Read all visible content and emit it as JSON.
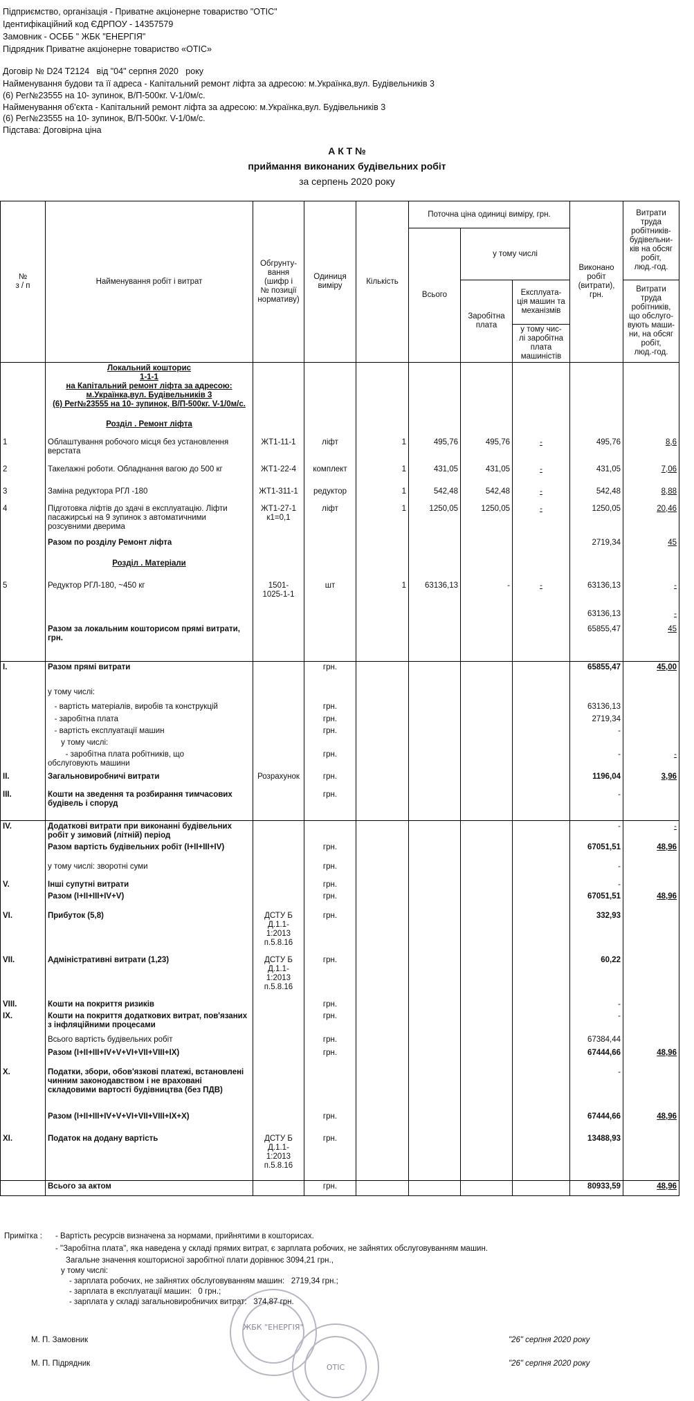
{
  "header": {
    "lines": [
      "Підприємство, організація - Приватне акціонерне товариство \"ОТІС\"",
      "Ідентифікаційний код ЄДРПОУ - 14357579",
      "Замовник - ОСББ \" ЖБК \"ЕНЕРГІЯ\"",
      "Підрядник Приватне акціонерне товариство «ОТІС»",
      "Договір № D24 T2124   від \"04\" серпня 2020   року",
      "Найменування будови та її адреса - Капітальний ремонт ліфта за адресою: м.Українка,вул. Будівельників 3",
      "(6) Рег№23555 на 10- зупинок, В/П-500кг. V-1/0м/с.",
      "Найменування об'єкта - Капітальний ремонт ліфта за адресою: м.Українка,вул. Будівельників 3",
      "(6) Рег№23555 на 10- зупинок, В/П-500кг. V-1/0м/с.",
      "Підстава: Договірна ціна"
    ]
  },
  "title": {
    "line1": "А К Т №",
    "line2": "приймання виконаних будівельних робіт",
    "line3": "за серпень 2020 року"
  },
  "table": {
    "head": {
      "no": "№\nз / п",
      "name": "Найменування робіт і витрат",
      "code": "Обгрунту-\nвання\n(шифр і\n№ позиції\nнормативу)",
      "unit": "Одиниця\nвиміру",
      "qty": "Кількість",
      "price": "Поточна ціна одиниці виміру, грн.",
      "total": "Всього",
      "incl": "у тому числі",
      "wage": "Заробітна\nплата",
      "mach": "Експлуата-\nція машин та\nмеханізмів",
      "mach_wage": "у тому чис-\nлі заробітна\nплата\nмашиністів",
      "done": "Виконано\nробіт\n(витрати),\nгрн.",
      "labor1": "Витрати\nтруда\nробітників-\nбудівельни-\nків на обсяг\nробіт,\nлюд.-год.",
      "labor2": "Витрати\nтруда\nробітників,\nщо обслуго-\nвують маши-\nни, на обсяг\nробіт,\nлюд.-год."
    },
    "rows": [
      {
        "name": "Локальний кошторис\n1-1-1\nна Капітальний ремонт ліфта за адресою:\nм.Українка,вул. Будівельників 3\n(6) Рег№23555 на 10- зупинок, В/П-500кг. V-1/0м/с."
      },
      {
        "name": "Розділ . Ремонт ліфта"
      },
      {
        "no": "1",
        "name": "Облаштування робочого місця без установлення верстата",
        "code": "ЖТ1-11-1",
        "unit": "ліфт",
        "qty": "1",
        "total": "495,76",
        "wage": "495,76",
        "mach": "-",
        "done": "495,76",
        "labor": "8,6"
      },
      {
        "no": "2",
        "name": "Такелажні роботи. Обладнання вагою до 500 кг",
        "code": "ЖТ1-22-4",
        "unit": "комплект",
        "qty": "1",
        "total": "431,05",
        "wage": "431,05",
        "mach": "-",
        "done": "431,05",
        "labor": "7,06"
      },
      {
        "no": "3",
        "name": "Заміна редуктора РГЛ -180",
        "code": "ЖТ1-311-1",
        "unit": "редуктор",
        "qty": "1",
        "total": "542,48",
        "wage": "542,48",
        "mach": "-",
        "done": "542,48",
        "labor": "8,88"
      },
      {
        "no": "4",
        "name": "Підготовка ліфтів до здачі в експлуатацію. Ліфти пасажирські на 9 зупинок з автоматичними розсувними дверима",
        "code": "ЖТ1-27-1\nк1=0,1",
        "unit": "ліфт",
        "qty": "1",
        "total": "1250,05",
        "wage": "1250,05",
        "mach": "-",
        "done": "1250,05",
        "labor": "20,46"
      },
      {
        "name": "Разом по розділу Ремонт ліфта",
        "done": "2719,34",
        "labor": "45"
      },
      {
        "name": "Розділ . Матеріали"
      },
      {
        "no": "5",
        "name": "Редуктор РГЛ-180, ~450 кг",
        "code": "1501-\n1025-1-1",
        "unit": "шт",
        "qty": "1",
        "total": "63136,13",
        "wage": "-",
        "mach": "-",
        "done": "63136,13",
        "labor": "-"
      },
      {
        "done": "63136,13",
        "labor": "-"
      },
      {
        "name": "Разом за локальним кошторисом прямі витрати,  грн.",
        "done": "65855,47",
        "labor": "45"
      },
      {
        "no": "I.",
        "name": "Разом прямі витрати",
        "unit": "грн.",
        "done": "65855,47",
        "labor": "45,00"
      },
      {
        "name": "у тому числі:"
      },
      {
        "name": "   - вартість матеріалів, виробів та конструкцій",
        "unit": "грн.",
        "done": "63136,13"
      },
      {
        "name": "   - заробітна плата",
        "unit": "грн.",
        "done": "2719,34"
      },
      {
        "name": "   - вартість експлуатації машин",
        "unit": "грн.",
        "done": "-"
      },
      {
        "name": "      у тому числі:"
      },
      {
        "name": "        - заробітна плата робітників, що\nобслуговують машини",
        "unit": "грн.",
        "done": "-",
        "labor": "-"
      },
      {
        "no": "II.",
        "name": "Загальновиробничі витрати",
        "code": "Розрахунок",
        "unit": "грн.",
        "done": "1196,04",
        "labor": "3,96"
      },
      {
        "no": "III.",
        "name": "Кошти на зведення та розбирання тимчасових будівель і споруд",
        "unit": "грн.",
        "done": "-"
      },
      {
        "no": "IV.",
        "name": "Додаткові витрати при виконанні будівельних робіт у зимовий (літній) період",
        "done": "-",
        "labor": "-"
      },
      {
        "name": "Разом вартість будівельних робіт (I+II+III+IV)",
        "unit": "грн.",
        "done": "67051,51",
        "labor": "48,96"
      },
      {
        "name": "у тому числі: зворотні суми",
        "unit": "грн.",
        "done": "-"
      },
      {
        "no": "V.",
        "name": "Інші супутні витрати",
        "unit": "грн.",
        "done": "-"
      },
      {
        "name": "Разом (I+II+III+IV+V)",
        "unit": "грн.",
        "done": "67051,51",
        "labor": "48,96"
      },
      {
        "no": "VI.",
        "name": "Прибуток (5,8)",
        "code": "ДСТУ Б\nД.1.1-\n1:2013\nп.5.8.16",
        "unit": "грн.",
        "done": "332,93"
      },
      {
        "no": "VII.",
        "name": "Адміністративні витрати (1,23)",
        "code": "ДСТУ Б\nД.1.1-\n1:2013\nп.5.8.16",
        "unit": "грн.",
        "done": "60,22"
      },
      {
        "no": "VIII.",
        "name": "Кошти на покриття ризиків",
        "unit": "грн.",
        "done": "-"
      },
      {
        "no": "IX.",
        "name": "Кошти на покриття додаткових витрат, пов'язаних з інфляційними процесами",
        "unit": "грн.",
        "done": "-"
      },
      {
        "name": "Всього вартість будівельних робіт",
        "unit": "грн.",
        "done": "67384,44"
      },
      {
        "name": "Разом (I+II+III+IV+V+VI+VII+VIII+IX)",
        "unit": "грн.",
        "done": "67444,66",
        "labor": "48,96"
      },
      {
        "no": "X.",
        "name": "Податки, збори, обов'язкові платежі, встановлені чинним законодавством і не враховані складовими вартості будівництва (без ПДВ)",
        "done": "-"
      },
      {
        "name": "Разом (I+II+III+IV+V+VI+VII+VIII+IX+X)",
        "unit": "грн.",
        "done": "67444,66",
        "labor": "48,96"
      },
      {
        "no": "XI.",
        "name": "Податок на додану вартість",
        "code": "ДСТУ Б\nД.1.1-\n1:2013\nп.5.8.16",
        "unit": "грн.",
        "done": "13488,93"
      },
      {
        "name": "Всього за актом",
        "unit": "грн.",
        "done": "80933,59",
        "labor": "48,96"
      }
    ]
  },
  "notes": {
    "label": "Примітка :",
    "lines": [
      "- Вартість ресурсів визначена за нормами, прийнятими в кошторисах.",
      "- \"Заробітна плата\", яка наведена у складі прямих витрат, є зарплата робочих, не зайнятих обслуговуванням машин.",
      "Загальне значення кошторисної заробітної плати дорівнює 3094,21 грн.,",
      "у тому числі:",
      "- зарплата робочих, не зайнятих обслуговуванням машин:   2719,34 грн.;",
      "- зарплата в експлуатації машин:   0 грн.;",
      "- зарплата у складі загальновиробничих витрат:   374,87 грн."
    ]
  },
  "signatures": {
    "customer": "М. П. Замовник",
    "contractor": "М. П. Підрядник",
    "date1": "\"26\" серпня 2020 року",
    "date2": "\"26\" серпня 2020 року",
    "stamp1": "ЖБК \"ЕНЕРГІЯ\"",
    "stamp2": "ОТІС"
  }
}
